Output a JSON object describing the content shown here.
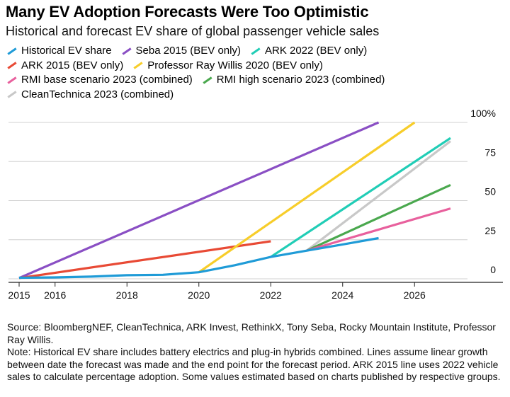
{
  "chart_data": {
    "type": "line",
    "title": "Many EV Adoption Forecasts Were Too Optimistic",
    "subtitle": "Historical and forecast EV share of global passenger vehicle sales",
    "xlim": [
      2015,
      2027
    ],
    "ylim": [
      0,
      100
    ],
    "x_ticks": [
      2015,
      2016,
      2018,
      2020,
      2022,
      2024,
      2026
    ],
    "y_ticks": [
      0,
      25,
      50,
      75,
      100
    ],
    "y_tick_labels": [
      "0",
      "25",
      "50",
      "75",
      "100%"
    ],
    "series": [
      {
        "name": "Historical EV share",
        "color": "#1f9bd7",
        "points": [
          [
            2015,
            0.7
          ],
          [
            2016,
            0.9
          ],
          [
            2017,
            1.4
          ],
          [
            2018,
            2.3
          ],
          [
            2019,
            2.6
          ],
          [
            2020,
            4.2
          ],
          [
            2021,
            8.7
          ],
          [
            2022,
            14
          ],
          [
            2023,
            18
          ],
          [
            2024,
            22
          ],
          [
            2025,
            26
          ]
        ]
      },
      {
        "name": "Seba 2015 (BEV only)",
        "color": "#8a4fc4",
        "points": [
          [
            2015,
            0.5
          ],
          [
            2025,
            100
          ]
        ]
      },
      {
        "name": "ARK 2022 (BEV only)",
        "color": "#21cdb6",
        "points": [
          [
            2022,
            14
          ],
          [
            2027,
            90
          ]
        ]
      },
      {
        "name": "ARK 2015 (BEV only)",
        "color": "#e84a35",
        "points": [
          [
            2015,
            0.5
          ],
          [
            2022,
            24
          ]
        ]
      },
      {
        "name": "Professor Ray Willis 2020 (BEV only)",
        "color": "#f7cd2a",
        "points": [
          [
            2020,
            4.2
          ],
          [
            2026,
            100
          ]
        ]
      },
      {
        "name": "RMI base scenario 2023 (combined)",
        "color": "#e8609d",
        "points": [
          [
            2023,
            18
          ],
          [
            2027,
            45
          ]
        ]
      },
      {
        "name": "RMI high scenario 2023 (combined)",
        "color": "#4aa84e",
        "points": [
          [
            2023,
            18
          ],
          [
            2027,
            60
          ]
        ]
      },
      {
        "name": "CleanTechnica 2023 (combined)",
        "color": "#c8c8c8",
        "points": [
          [
            2023,
            18
          ],
          [
            2027,
            88
          ]
        ]
      }
    ],
    "legend_rows": [
      [
        0,
        1,
        2
      ],
      [
        3,
        4
      ],
      [
        5,
        6
      ],
      [
        7
      ]
    ],
    "grid": "horizontal",
    "legend_position": "top"
  },
  "source_text": "Source: BloombergNEF, CleanTechnica, ARK Invest, RethinkX, Tony Seba, Rocky Mountain Institute, Professor Ray Willis.",
  "note_text": "Note: Historical EV share includes battery electrics and plug-in hybrids combined. Lines assume linear growth between date the forecast was made and the end point for the forecast period. ARK 2015 line uses 2022 vehicle sales to calculate percentage adoption. Some values estimated based on charts published by respective groups."
}
